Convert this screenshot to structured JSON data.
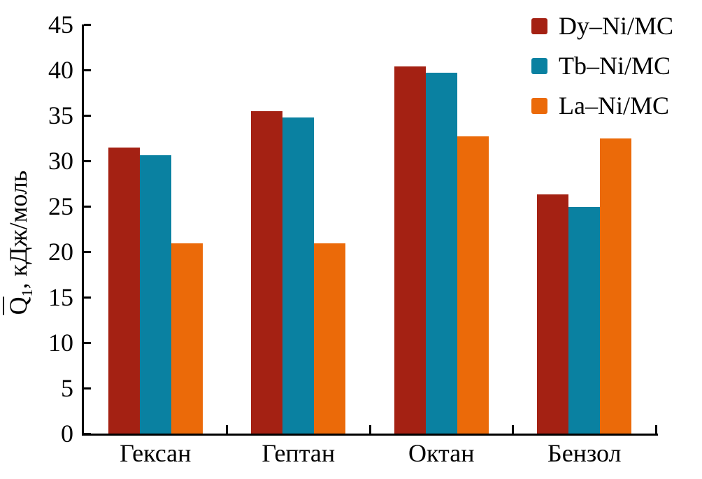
{
  "chart_data": {
    "type": "bar",
    "title": "",
    "categories": [
      "Гексан",
      "Гептан",
      "Октан",
      "Бензол"
    ],
    "series": [
      {
        "name": "Dy–Ni/MC",
        "color": "#a42113",
        "values": [
          31.5,
          35.5,
          40.4,
          26.3
        ]
      },
      {
        "name": "Tb–Ni/MC",
        "color": "#0a81a1",
        "values": [
          30.6,
          34.8,
          39.7,
          24.9
        ]
      },
      {
        "name": "La–Ni/MC",
        "color": "#eb6a09",
        "values": [
          20.9,
          20.9,
          32.7,
          32.5
        ]
      }
    ],
    "xlabel": "",
    "ylabel": "Q̄₁, кДж/моль",
    "ylabel_parts": {
      "symbol": "Q",
      "subscript": "1",
      "units": ", кДж/моль"
    },
    "ylim": [
      0,
      45
    ],
    "yticks": [
      0,
      5,
      10,
      15,
      20,
      25,
      30,
      35,
      40,
      45
    ],
    "legend_position": "top-right",
    "grid": false,
    "axis_color": "#000000",
    "text_color": "#000000",
    "background": "#ffffff"
  }
}
